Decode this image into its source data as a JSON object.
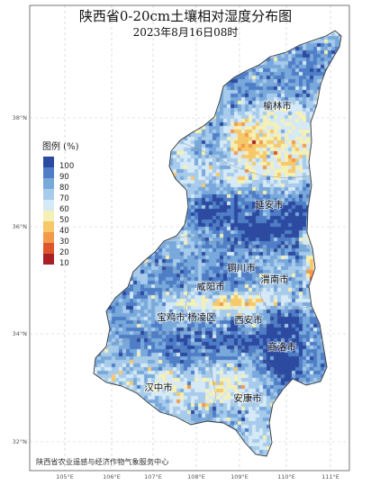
{
  "title": "陕西省0-20cm土壤相对湿度分布图",
  "subtitle": "2023年8月16日08时",
  "legend": {
    "title": "图例 (%)",
    "items": [
      {
        "label": "100",
        "color": "#2c4aa0"
      },
      {
        "label": "90",
        "color": "#4f7ec7"
      },
      {
        "label": "80",
        "color": "#79a9db"
      },
      {
        "label": "70",
        "color": "#a7cbeb"
      },
      {
        "label": "60",
        "color": "#d5e9f6"
      },
      {
        "label": "50",
        "color": "#f5f0b5"
      },
      {
        "label": "40",
        "color": "#f6c86a"
      },
      {
        "label": "30",
        "color": "#f3994b"
      },
      {
        "label": "20",
        "color": "#df552b"
      },
      {
        "label": "10",
        "color": "#a81f24"
      }
    ]
  },
  "axes": {
    "latitude_labels": [
      "38°N",
      "36°N",
      "34°N",
      "32°N"
    ],
    "longitude_labels": [
      "105°E",
      "106°E",
      "107°E",
      "108°E",
      "109°E",
      "110°E",
      "111°E"
    ]
  },
  "cities": [
    {
      "name": "榆林市"
    },
    {
      "name": "延安市"
    },
    {
      "name": "铜川市"
    },
    {
      "name": "渭南市"
    },
    {
      "name": "咸阳市"
    },
    {
      "name": "宝鸡市"
    },
    {
      "name": "杨凌区"
    },
    {
      "name": "西安市"
    },
    {
      "name": "商洛市"
    },
    {
      "name": "汉中市"
    },
    {
      "name": "安康市"
    }
  ],
  "credit": "陕西省农业遥感与经济作物气象服务中心"
}
